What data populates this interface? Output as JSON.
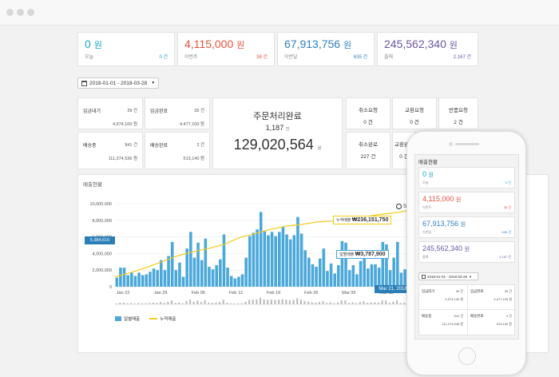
{
  "summary": [
    {
      "value": "0",
      "unit": "원",
      "label": "오늘",
      "count": "0 건",
      "color": "#1aa3c8",
      "count_color": "#1aa3c8"
    },
    {
      "value": "4,115,000",
      "unit": "원",
      "label": "이번주",
      "count": "38 건",
      "color": "#e5533d",
      "count_color": "#e5533d"
    },
    {
      "value": "67,913,756",
      "unit": "원",
      "label": "이번달",
      "count": "635 건",
      "color": "#2f7fc1",
      "count_color": "#2f7fc1"
    },
    {
      "value": "245,562,340",
      "unit": "원",
      "label": "올해",
      "count": "2,167 건",
      "color": "#6a58a6",
      "count_color": "#6a58a6"
    }
  ],
  "date_range": "2018-01-01 - 2018-03-28",
  "orders": [
    {
      "label": "입금대기",
      "count": "39 건",
      "amount": "4,974,100 원"
    },
    {
      "label": "입금완료",
      "count": "35 건",
      "amount": "4,477,100 원"
    },
    {
      "label": "배송중",
      "count": "941 건",
      "amount": "111,274,536 원"
    },
    {
      "label": "배송완료",
      "count": "2 건",
      "amount": "513,140 원"
    }
  ],
  "completed": {
    "title": "주문처리완료",
    "count": "1,187",
    "count_unit": "건",
    "amount": "129,020,564",
    "amount_unit": "원"
  },
  "requests": [
    {
      "label": "취소요청",
      "value": "0 건"
    },
    {
      "label": "교환요청",
      "value": "0 건"
    },
    {
      "label": "반품요청",
      "value": "2 건"
    },
    {
      "label": "취소완료",
      "value": "227 건"
    },
    {
      "label": "교환완료",
      "value": "0 건"
    }
  ],
  "chart_card_title": "매출현황",
  "chart_data": {
    "type": "bar",
    "y_ticks": [
      "10,000,000",
      "8,000,000",
      "6,000,000",
      "4,000,000",
      "2,000,000",
      "0"
    ],
    "ylim": [
      0,
      10000000
    ],
    "x_tick_labels": [
      "Jan 22",
      "Jan 29",
      "Feb 05",
      "Feb 12",
      "Feb 19",
      "Feb 26",
      "Mar 05",
      "Mar 12"
    ],
    "values": [
      1100000,
      2300000,
      2300000,
      1400000,
      1700000,
      1300000,
      1700000,
      1400000,
      1500000,
      1800000,
      2200000,
      2000000,
      3200000,
      2000000,
      3700000,
      5400000,
      2000000,
      2900000,
      1200000,
      4600000,
      6600000,
      3500000,
      5300000,
      3200000,
      5800000,
      2400000,
      2100000,
      2600000,
      3300000,
      6300000,
      2300000,
      1300000,
      1000000,
      1200000,
      1500000,
      3500000,
      6100000,
      6500000,
      6900000,
      9000000,
      6700000,
      6200000,
      6600000,
      6100000,
      6600000,
      7200000,
      6300000,
      5700000,
      6200000,
      8400000,
      6400000,
      4400000,
      3500000,
      2700000,
      2400000,
      3400000,
      4600000,
      1900000,
      2800000,
      1600000,
      2600000,
      5500000,
      5300000,
      2000000,
      2600000,
      1500000,
      3100000,
      4000000,
      2200000,
      2700000,
      2700000,
      2300000,
      5400000,
      5100000,
      2000000,
      3500000,
      5400000,
      1700000,
      2100000,
      1800000
    ],
    "cumulative_line": [
      1200000,
      1700000,
      2300000,
      3000000,
      3700000,
      4200000,
      4600000,
      5100000,
      5900000,
      6400000,
      6900000,
      7300000,
      7500000,
      7800000,
      7900000,
      8050000,
      8400000,
      8700000,
      8900000,
      9200000
    ],
    "series": [
      {
        "name": "일별매출",
        "color": "#4ba8db"
      },
      {
        "name": "누적매출",
        "color": "#f2cc1a"
      }
    ],
    "current_marker": "5,384,615",
    "tooltip_daily": {
      "label": "일별매출",
      "value": "₩3,787,900"
    },
    "tooltip_cumulative": {
      "label": "누적매출",
      "value": "₩236,151,750"
    },
    "date_badge": "Mar 21, 2018",
    "zoom_label": "Sh"
  },
  "mobile": {
    "title": "매출현황",
    "date_range": "2018-01-01 - 2018-03-28",
    "orders": [
      {
        "label": "입금대기",
        "count": "39 건",
        "amount": "4,974,100 원"
      },
      {
        "label": "입금완료",
        "count": "35 건",
        "amount": "4,477,100 원"
      },
      {
        "label": "배송중",
        "count": "941 건",
        "amount": "111,274,536 원"
      },
      {
        "label": "배송완료",
        "count": "2 건",
        "amount": "513,140 원"
      }
    ]
  }
}
